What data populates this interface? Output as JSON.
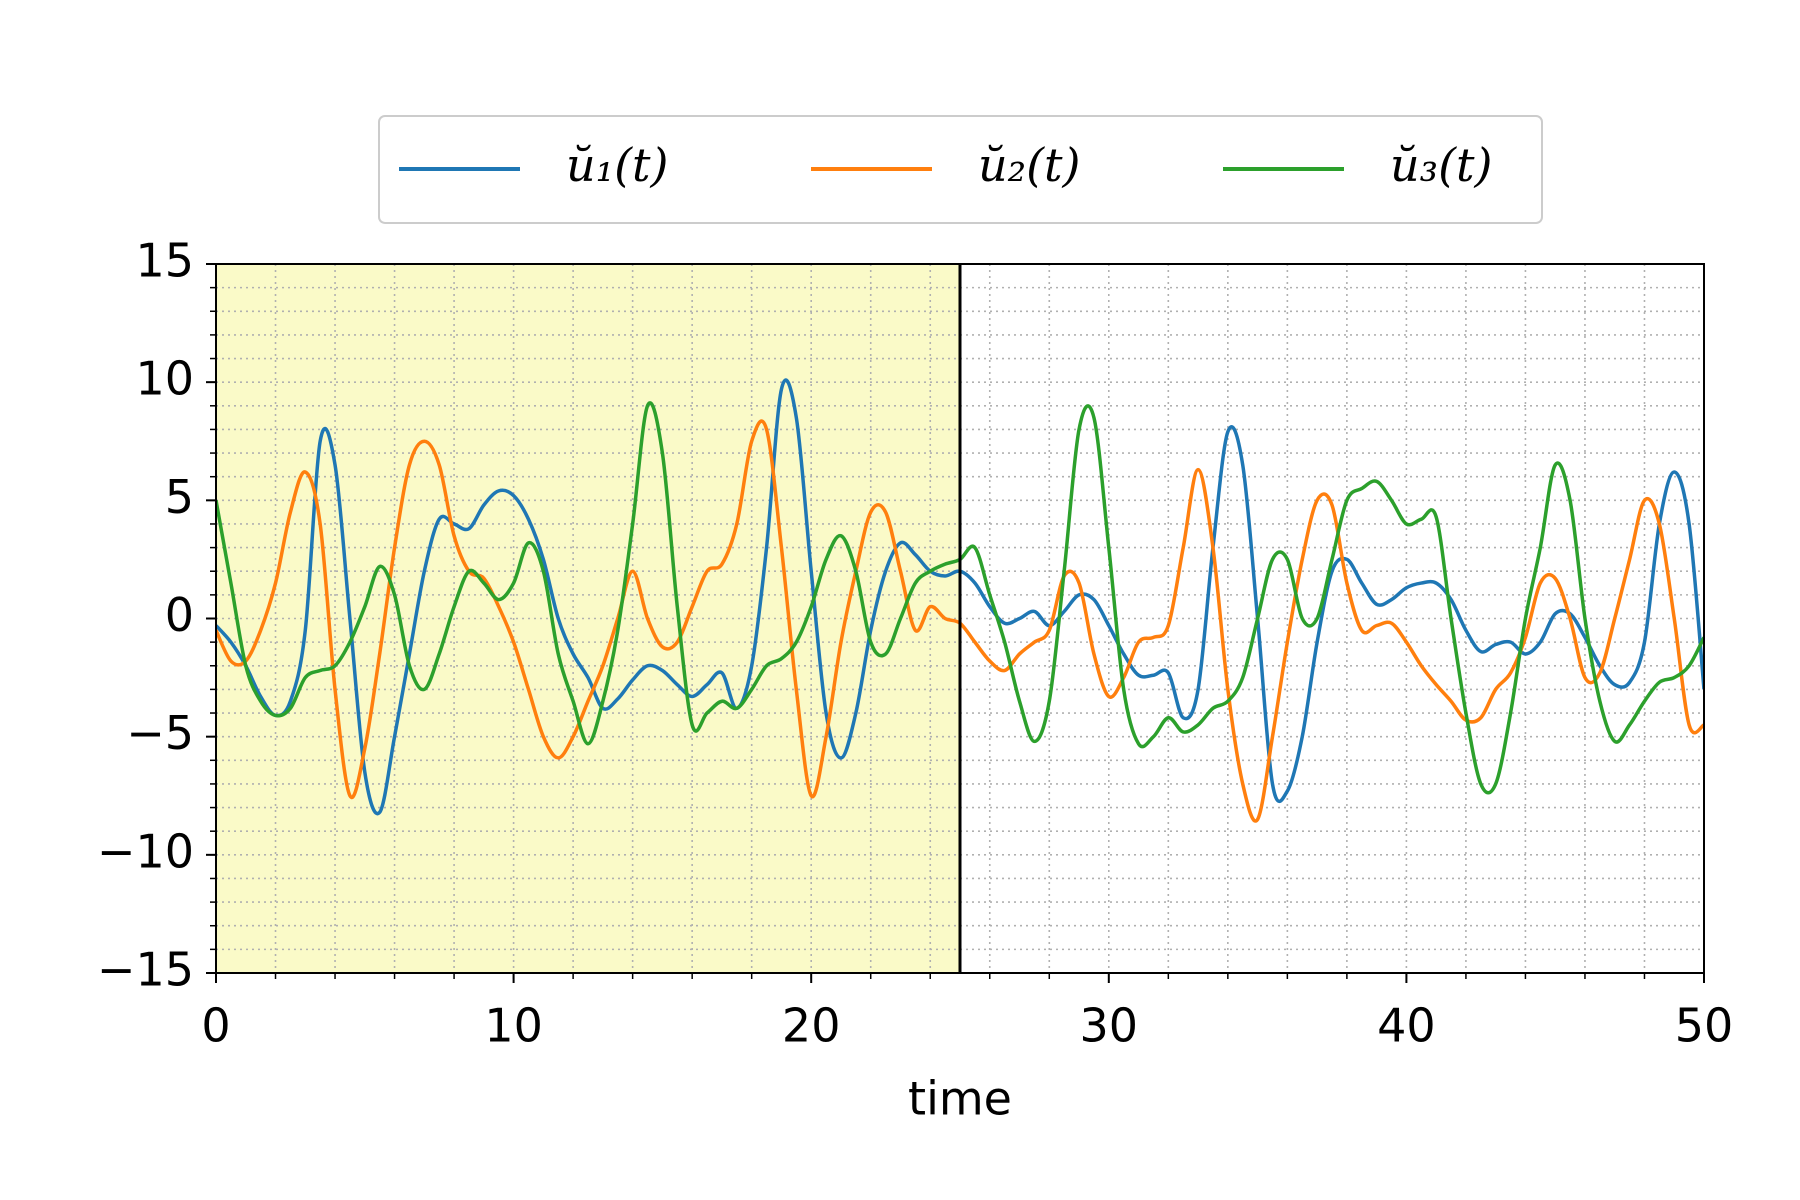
{
  "chart_data": {
    "type": "line",
    "x_label": "time",
    "x": [
      0,
      0.5,
      1,
      1.5,
      2,
      2.5,
      3,
      3.5,
      4,
      4.5,
      5,
      5.5,
      6,
      6.5,
      7,
      7.5,
      8,
      8.5,
      9,
      9.5,
      10,
      10.5,
      11,
      11.5,
      12,
      12.5,
      13,
      13.5,
      14,
      14.5,
      15,
      15.5,
      16,
      16.5,
      17,
      17.5,
      18,
      18.5,
      19,
      19.5,
      20,
      20.5,
      21,
      21.5,
      22,
      22.5,
      23,
      23.5,
      24,
      24.5,
      25,
      25.5,
      26,
      26.5,
      27,
      27.5,
      28,
      28.5,
      29,
      29.5,
      30,
      30.5,
      31,
      31.5,
      32,
      32.5,
      33,
      33.5,
      34,
      34.5,
      35,
      35.5,
      36,
      36.5,
      37,
      37.5,
      38,
      38.5,
      39,
      39.5,
      40,
      40.5,
      41,
      41.5,
      42,
      42.5,
      43,
      43.5,
      44,
      44.5,
      45,
      45.5,
      46,
      46.5,
      47,
      47.5,
      48,
      48.5,
      49,
      49.5,
      50
    ],
    "series": [
      {
        "name": "ŭ₁(t)",
        "color": "#1f77b4",
        "values": [
          -0.3,
          -1,
          -2,
          -3.3,
          -4.1,
          -3.5,
          -0.5,
          7.5,
          6.5,
          0,
          -6.5,
          -8.2,
          -5,
          -1.5,
          2,
          4.2,
          4,
          3.8,
          4.8,
          5.4,
          5.2,
          4.2,
          2.5,
          0,
          -1.5,
          -2.5,
          -3.8,
          -3.4,
          -2.6,
          -2,
          -2.2,
          -2.8,
          -3.3,
          -2.8,
          -2.3,
          -3.8,
          -2,
          3,
          9.7,
          8.5,
          2,
          -4,
          -5.9,
          -4,
          -0.5,
          2,
          3.2,
          2.7,
          2,
          1.8,
          2,
          1.5,
          0.5,
          -0.2,
          0,
          0.3,
          -0.3,
          0.3,
          1,
          0.8,
          -0.3,
          -1.5,
          -2.4,
          -2.4,
          -2.3,
          -4.2,
          -3,
          3,
          7.9,
          6.5,
          0,
          -7,
          -7.3,
          -5,
          -1,
          2,
          2.5,
          1.5,
          0.6,
          0.8,
          1.3,
          1.5,
          1.5,
          0.8,
          -0.5,
          -1.4,
          -1.1,
          -1,
          -1.5,
          -1,
          0.2,
          0.2,
          -0.8,
          -2,
          -2.8,
          -2.7,
          -1,
          4,
          6.2,
          4,
          -3
        ]
      },
      {
        "name": "ŭ₂(t)",
        "color": "#ff7f0e",
        "values": [
          -0.5,
          -1.8,
          -1.8,
          -0.5,
          1.5,
          4.5,
          6.2,
          4,
          -3,
          -7.5,
          -5.5,
          -1.5,
          3,
          6.5,
          7.5,
          6.5,
          3.5,
          2,
          1.7,
          0.5,
          -1,
          -3,
          -5,
          -5.9,
          -5,
          -3.5,
          -2,
          0,
          2,
          0,
          -1.2,
          -1,
          0.5,
          2,
          2.3,
          4,
          7.5,
          8,
          3,
          -3,
          -7.5,
          -5,
          -1,
          2,
          4.5,
          4.5,
          2,
          -0.5,
          0.5,
          0,
          -0.2,
          -1,
          -1.8,
          -2.2,
          -1.5,
          -1,
          -0.5,
          1.8,
          1.5,
          -1.5,
          -3.3,
          -2.5,
          -1,
          -0.8,
          -0.3,
          3,
          6.3,
          3,
          -3,
          -7,
          -8.5,
          -5,
          -1,
          2.5,
          5,
          4.8,
          1.5,
          -0.5,
          -0.3,
          -0.2,
          -1,
          -2,
          -2.8,
          -3.5,
          -4.3,
          -4.2,
          -3,
          -2.3,
          -0.8,
          1.5,
          1.7,
          0,
          -2.5,
          -2.3,
          0,
          2.5,
          5,
          4,
          0,
          -4.5,
          -4.5
        ]
      },
      {
        "name": "ŭ₃(t)",
        "color": "#2ca02c",
        "values": [
          5,
          1.5,
          -2,
          -3.5,
          -4.1,
          -3.8,
          -2.5,
          -2.2,
          -2,
          -1,
          0.5,
          2.2,
          1,
          -2,
          -3,
          -1.5,
          0.5,
          2,
          1.5,
          0.8,
          1.5,
          3.2,
          2,
          -1.5,
          -3.5,
          -5.3,
          -3.5,
          -0.5,
          4,
          9,
          7,
          0.5,
          -4.5,
          -4,
          -3.5,
          -3.8,
          -3,
          -2,
          -1.7,
          -1,
          0.5,
          2.5,
          3.5,
          2,
          -1,
          -1.5,
          0,
          1.5,
          2,
          2.3,
          2.5,
          3,
          1,
          -1,
          -3.5,
          -5.2,
          -3.5,
          2,
          8,
          8.5,
          3,
          -3,
          -5.3,
          -5,
          -4.2,
          -4.8,
          -4.5,
          -3.8,
          -3.5,
          -2.5,
          0,
          2.5,
          2.5,
          0,
          0,
          2.5,
          5,
          5.5,
          5.8,
          5,
          4,
          4.2,
          4.3,
          0,
          -4,
          -7,
          -7,
          -4,
          0,
          3,
          6.5,
          5,
          0,
          -3.5,
          -5.2,
          -4.5,
          -3.5,
          -2.7,
          -2.5,
          -2,
          -0.8
        ]
      }
    ],
    "xlim": [
      0,
      50
    ],
    "xticks": [
      0,
      10,
      20,
      30,
      40,
      50
    ],
    "ylim": [
      -15,
      15
    ],
    "yticks": [
      {
        "value": -15,
        "label": "−15"
      },
      {
        "value": -10,
        "label": "−10"
      },
      {
        "value": -5,
        "label": "−5"
      },
      0,
      5,
      10,
      15
    ],
    "minor_xticks": [
      0,
      2,
      4,
      6,
      8,
      10,
      12,
      14,
      16,
      18,
      20,
      22,
      24,
      26,
      28,
      30,
      32,
      34,
      36,
      38,
      40,
      42,
      44,
      46,
      48,
      50
    ],
    "minor_yticks": [
      -15,
      -14,
      -13,
      -12,
      -11,
      -10,
      -9,
      -8,
      -7,
      -6,
      -5,
      -4,
      -3,
      -2,
      -1,
      0,
      1,
      2,
      3,
      4,
      5,
      6,
      7,
      8,
      9,
      10,
      11,
      12,
      13,
      14,
      15
    ],
    "grid": true,
    "shade": [
      0,
      25
    ],
    "shade_color": "#fafac8",
    "vline": 25,
    "legend": "top"
  }
}
